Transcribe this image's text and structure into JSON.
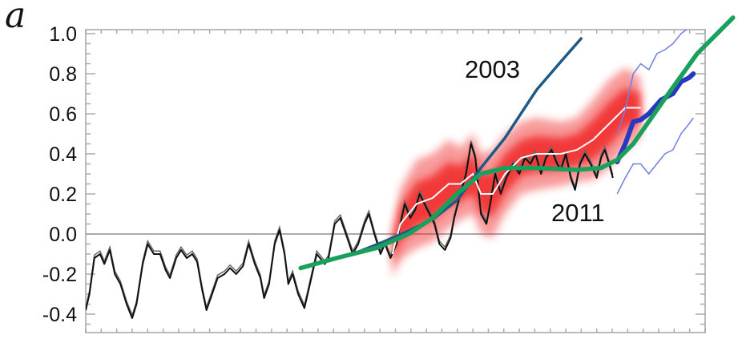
{
  "panel_label": "a",
  "chart_data": {
    "type": "line",
    "title": "",
    "xlabel": "",
    "ylabel": "",
    "xlim": [
      0,
      100
    ],
    "ylim": [
      -0.45,
      1.0
    ],
    "yticks": [
      1.0,
      0.8,
      0.6,
      0.4,
      0.2,
      0.0,
      -0.2,
      -0.4
    ],
    "ytick_labels": [
      "1.0",
      "0.8",
      "0.6",
      "0.4",
      "0.2",
      "0.0",
      "-0.2",
      "-0.4"
    ],
    "x_tick_labels_shown": false,
    "zero_line": true,
    "grid": false,
    "annotations": [
      {
        "text": "2003",
        "series": "2003 projection"
      },
      {
        "text": "2011",
        "series": "2011 projection"
      }
    ],
    "colors": {
      "observed": "#111111",
      "band": "#f02020",
      "band_mean": "#ffffff",
      "curve_2003": "#1f5a86",
      "curve_2011": "#18a05c",
      "blue_thick": "#2838c0",
      "blue_thin": "#7080e0",
      "zero": "#aaaaaa"
    },
    "series": [
      {
        "id": "observed",
        "x": [
          0,
          0.6,
          1.4,
          2.3,
          3.0,
          3.9,
          4.7,
          5.6,
          6.6,
          7.5,
          8.2,
          9.2,
          10.0,
          11.0,
          12.0,
          12.9,
          13.6,
          14.6,
          15.4,
          16.3,
          17.2,
          18.0,
          18.8,
          19.5,
          20.4,
          21.3,
          22.4,
          23.3,
          24.3,
          25.4,
          26.3,
          27.3,
          28.2,
          28.8,
          29.6,
          30.5,
          31.3,
          32.1,
          32.7,
          33.4,
          34.3,
          35.3,
          36.2,
          37.3,
          38.6,
          39.2,
          40.2,
          41.1,
          42.0,
          43.1,
          44.0,
          45.0,
          45.7,
          46.6,
          47.6,
          48.3,
          49.2,
          50.2,
          50.8,
          51.5,
          52.4,
          53.2,
          53.9,
          54.7,
          55.5,
          56.3,
          57.1,
          58.0,
          58.9,
          59.5,
          60.5,
          61.4,
          62.2,
          62.9,
          63.8,
          64.7,
          65.3,
          66.1,
          67.0,
          67.9,
          69.0,
          70.0,
          70.9,
          71.8,
          72.6,
          73.5,
          74.3,
          75.2,
          76.1,
          76.7,
          77.5,
          78.3,
          79.0,
          79.8,
          80.6,
          81.5,
          82.5,
          83.2,
          83.8,
          84.5,
          85.1
        ],
        "y": [
          -0.38,
          -0.3,
          -0.12,
          -0.1,
          -0.15,
          -0.08,
          -0.2,
          -0.25,
          -0.35,
          -0.42,
          -0.35,
          -0.15,
          -0.05,
          -0.1,
          -0.1,
          -0.18,
          -0.22,
          -0.12,
          -0.08,
          -0.12,
          -0.1,
          -0.14,
          -0.28,
          -0.38,
          -0.3,
          -0.22,
          -0.2,
          -0.17,
          -0.2,
          -0.16,
          -0.05,
          -0.15,
          -0.22,
          -0.32,
          -0.25,
          -0.05,
          0.02,
          -0.1,
          -0.25,
          -0.2,
          -0.3,
          -0.37,
          -0.25,
          -0.1,
          -0.15,
          -0.12,
          0.05,
          0.08,
          0.0,
          -0.1,
          -0.05,
          0.05,
          0.1,
          0.0,
          -0.1,
          -0.05,
          -0.12,
          -0.05,
          0.05,
          0.15,
          0.08,
          0.12,
          0.2,
          0.15,
          0.1,
          0.05,
          -0.05,
          -0.08,
          -0.02,
          0.08,
          0.2,
          0.3,
          0.45,
          0.38,
          0.1,
          0.05,
          0.15,
          0.3,
          0.2,
          0.28,
          0.35,
          0.3,
          0.38,
          0.35,
          0.4,
          0.3,
          0.38,
          0.42,
          0.35,
          0.32,
          0.4,
          0.28,
          0.22,
          0.35,
          0.4,
          0.35,
          0.28,
          0.38,
          0.42,
          0.35,
          0.28
        ]
      },
      {
        "id": "band_mean",
        "x": [
          49.5,
          50.8,
          53.4,
          56.0,
          58.6,
          60.5,
          62.5,
          63.8,
          65.7,
          67.7,
          70.3,
          72.8,
          76.7,
          79.3,
          81.9,
          84.5,
          87.1,
          89.6
        ],
        "y": [
          -0.1,
          0.05,
          0.15,
          0.18,
          0.25,
          0.25,
          0.3,
          0.2,
          0.2,
          0.3,
          0.38,
          0.4,
          0.4,
          0.42,
          0.47,
          0.55,
          0.63,
          0.63
        ],
        "spread": [
          0.12,
          0.18,
          0.22,
          0.22,
          0.22,
          0.18,
          0.2,
          0.2,
          0.22,
          0.2,
          0.18,
          0.18,
          0.16,
          0.16,
          0.2,
          0.22,
          0.2,
          0.15
        ]
      },
      {
        "id": "curve_2003",
        "x": [
          43.1,
          48.0,
          52.4,
          56.3,
          60.0,
          63.8,
          67.7,
          72.8,
          76.7,
          80.1
        ],
        "y": [
          -0.1,
          -0.04,
          0.02,
          0.08,
          0.17,
          0.33,
          0.48,
          0.72,
          0.86,
          0.98
        ]
      },
      {
        "id": "curve_2011",
        "x": [
          34.7,
          40.5,
          46.9,
          52.1,
          56.0,
          59.9,
          63.8,
          67.7,
          72.8,
          79.3,
          83.2,
          85.8,
          88.4,
          93.6,
          98.7,
          104.5
        ],
        "y": [
          -0.17,
          -0.12,
          -0.07,
          0.0,
          0.08,
          0.2,
          0.3,
          0.33,
          0.33,
          0.32,
          0.33,
          0.37,
          0.45,
          0.68,
          0.9,
          1.08
        ]
      },
      {
        "id": "blue_thick",
        "x": [
          85.8,
          87.1,
          88.4,
          89.6,
          90.9,
          92.9,
          94.8,
          96.1,
          97.4,
          98.1
        ],
        "y": [
          0.36,
          0.45,
          0.56,
          0.57,
          0.6,
          0.67,
          0.7,
          0.76,
          0.78,
          0.8
        ]
      },
      {
        "id": "blue_thin_upper",
        "x": [
          85.8,
          87.1,
          88.4,
          89.6,
          90.9,
          92.2,
          93.5,
          94.8,
          96.1,
          97.4
        ],
        "y": [
          0.5,
          0.62,
          0.8,
          0.85,
          0.82,
          0.9,
          0.92,
          0.95,
          1.0,
          1.03
        ]
      },
      {
        "id": "blue_thin_lower",
        "x": [
          85.8,
          87.1,
          88.4,
          89.6,
          90.9,
          92.2,
          93.5,
          94.8,
          96.1,
          97.4,
          98.1
        ],
        "y": [
          0.2,
          0.28,
          0.35,
          0.35,
          0.3,
          0.35,
          0.4,
          0.42,
          0.5,
          0.55,
          0.58
        ]
      }
    ]
  }
}
